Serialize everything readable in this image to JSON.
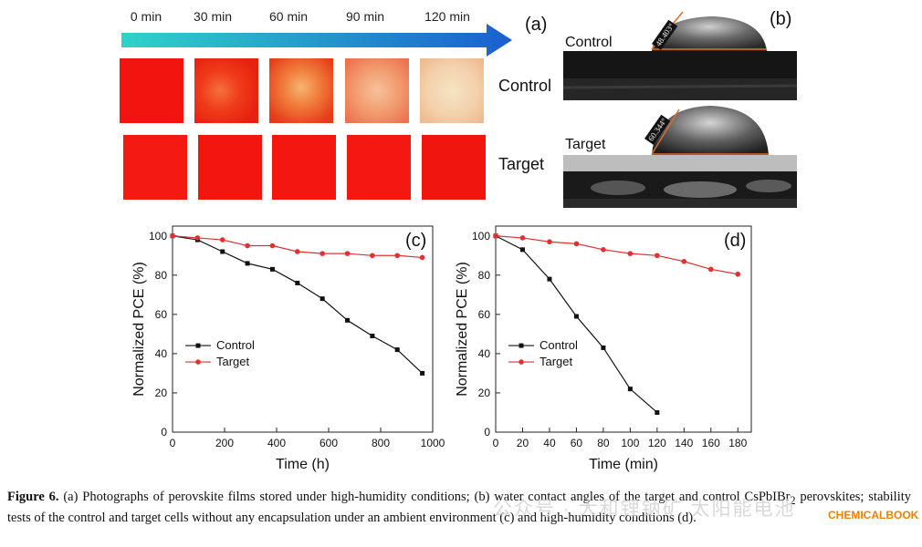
{
  "panel_a": {
    "tag": "(a)",
    "time_labels": [
      "0 min",
      "30 min",
      "60 min",
      "90 min",
      "120 min"
    ],
    "row_labels": [
      "Control",
      "Target"
    ]
  },
  "panel_b": {
    "tag": "(b)",
    "labels": [
      "Control",
      "Target"
    ],
    "angles": [
      "48.403°",
      "60.344°"
    ]
  },
  "chart_data": [
    {
      "type": "line",
      "panel": "(c)",
      "xlabel": "Time (h)",
      "ylabel": "Normalized PCE (%)",
      "xlim": [
        0,
        1000
      ],
      "ylim": [
        0,
        105
      ],
      "xticks": [
        0,
        200,
        400,
        600,
        800,
        1000
      ],
      "yticks": [
        0,
        20,
        40,
        60,
        80,
        100
      ],
      "legend_position": "left-middle",
      "series": [
        {
          "name": "Control",
          "color": "#111111",
          "marker": "square",
          "x": [
            0,
            96,
            192,
            288,
            384,
            480,
            576,
            672,
            768,
            864,
            960
          ],
          "y": [
            100,
            98,
            92,
            86,
            83,
            76,
            68,
            57,
            49,
            42,
            30
          ]
        },
        {
          "name": "Target",
          "color": "#e03030",
          "marker": "circle",
          "x": [
            0,
            96,
            192,
            288,
            384,
            480,
            576,
            672,
            768,
            864,
            960
          ],
          "y": [
            100,
            99,
            98,
            95,
            95,
            92,
            91,
            91,
            90,
            90,
            89
          ]
        }
      ]
    },
    {
      "type": "line",
      "panel": "(d)",
      "xlabel": "Time (min)",
      "ylabel": "Normalized PCE (%)",
      "xlim": [
        0,
        190
      ],
      "ylim": [
        0,
        105
      ],
      "xticks": [
        0,
        20,
        40,
        60,
        80,
        100,
        120,
        140,
        160,
        180
      ],
      "yticks": [
        0,
        20,
        40,
        60,
        80,
        100
      ],
      "legend_position": "left-middle",
      "series": [
        {
          "name": "Control",
          "color": "#111111",
          "marker": "square",
          "x": [
            0,
            20,
            40,
            60,
            80,
            100,
            120
          ],
          "y": [
            100,
            93,
            78,
            59,
            43,
            22,
            10
          ]
        },
        {
          "name": "Target",
          "color": "#e03030",
          "marker": "circle",
          "x": [
            0,
            20,
            40,
            60,
            80,
            100,
            120,
            140,
            160,
            180
          ],
          "y": [
            100,
            99,
            97,
            96,
            93,
            91,
            90,
            87,
            83,
            80.5
          ]
        }
      ]
    }
  ],
  "caption": {
    "label": "Figure 6.",
    "text": " (a) Photographs of perovskite films stored under high-humidity conditions; (b) water contact angles of the target and control CsPbIBr",
    "subscript": "2",
    "text2": " perovskites; stability tests of the control and target cells without any encapsulation under an ambient environment (c) and high-humidity conditions (d)."
  },
  "watermark": {
    "text": "公众号 · 大和锂钠矿 太阳能电池",
    "brand": "CHEMICALBOOK"
  }
}
